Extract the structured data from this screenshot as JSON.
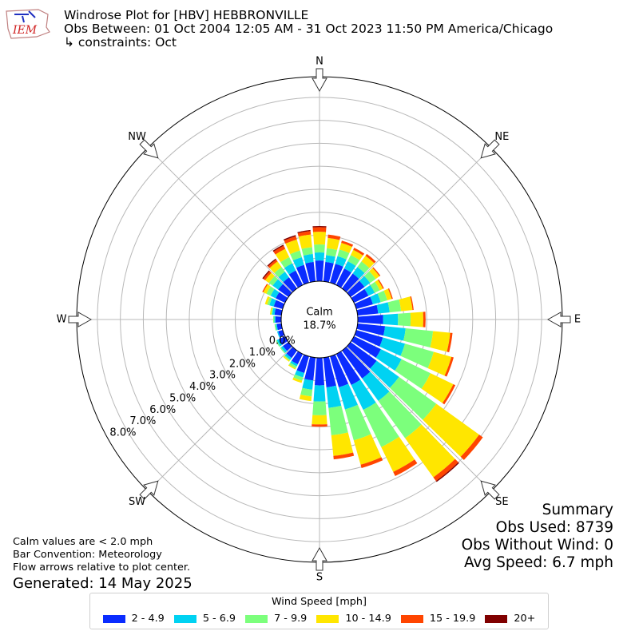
{
  "header": {
    "logo_text": "IEM",
    "title": "Windrose Plot for [HBV] HEBBRONVILLE",
    "obs_between": "Obs Between: 01 Oct 2004 12:05 AM - 31 Oct 2023 11:50 PM America/Chicago",
    "constraints": "↳ constraints: Oct"
  },
  "summary": {
    "title": "Summary",
    "obs_used": "Obs Used: 8739",
    "obs_without_wind": "Obs Without Wind: 0",
    "avg_speed": "Avg Speed: 6.7 mph"
  },
  "notes": {
    "calm_note": "Calm values are < 2.0 mph",
    "bar_convention": "Bar Convention: Meteorology",
    "flow_note": "Flow arrows relative to plot center.",
    "generated": "Generated: 14 May 2025"
  },
  "chart_data": {
    "type": "windrose",
    "calm_label": "Calm",
    "calm_value": "18.7%",
    "directions": [
      "N",
      "NE",
      "E",
      "SE",
      "S",
      "SW",
      "W",
      "NW"
    ],
    "radial_ticks": [
      "0.0%",
      "1.0%",
      "2.0%",
      "3.0%",
      "4.0%",
      "5.0%",
      "6.0%",
      "7.0%",
      "8.0%"
    ],
    "radial_max": 8.9,
    "legend_title": "Wind Speed [mph]",
    "bins": [
      {
        "label": "2 - 4.9",
        "color": "#0a2cff"
      },
      {
        "label": "5 - 6.9",
        "color": "#00d2f2"
      },
      {
        "label": "7 - 9.9",
        "color": "#7cff7c"
      },
      {
        "label": "10 - 14.9",
        "color": "#ffe600"
      },
      {
        "label": "15 - 19.9",
        "color": "#ff4500"
      },
      {
        "label": "20+",
        "color": "#800000"
      }
    ],
    "sectors": [
      {
        "dir": 0,
        "values": [
          0.9,
          0.35,
          0.35,
          0.55,
          0.2,
          0.05
        ]
      },
      {
        "dir": 10,
        "values": [
          0.85,
          0.3,
          0.3,
          0.45,
          0.15,
          0.0
        ]
      },
      {
        "dir": 20,
        "values": [
          0.85,
          0.35,
          0.3,
          0.3,
          0.1,
          0.0
        ]
      },
      {
        "dir": 30,
        "values": [
          0.8,
          0.35,
          0.3,
          0.25,
          0.1,
          0.0
        ]
      },
      {
        "dir": 40,
        "values": [
          0.8,
          0.35,
          0.3,
          0.3,
          0.1,
          0.0
        ]
      },
      {
        "dir": 50,
        "values": [
          0.75,
          0.3,
          0.3,
          0.2,
          0.05,
          0.0
        ]
      },
      {
        "dir": 60,
        "values": [
          0.7,
          0.3,
          0.25,
          0.15,
          0.05,
          0.0
        ]
      },
      {
        "dir": 70,
        "values": [
          0.75,
          0.35,
          0.3,
          0.2,
          0.05,
          0.0
        ]
      },
      {
        "dir": 80,
        "values": [
          0.9,
          0.5,
          0.5,
          0.5,
          0.05,
          0.0
        ]
      },
      {
        "dir": 90,
        "values": [
          1.1,
          0.65,
          0.55,
          0.55,
          0.1,
          0.0
        ]
      },
      {
        "dir": 100,
        "values": [
          1.2,
          0.9,
          1.2,
          0.75,
          0.1,
          0.0
        ]
      },
      {
        "dir": 110,
        "values": [
          1.2,
          1.0,
          1.3,
          0.8,
          0.1,
          0.0
        ]
      },
      {
        "dir": 120,
        "values": [
          1.3,
          1.0,
          1.4,
          1.1,
          0.1,
          0.0
        ]
      },
      {
        "dir": 130,
        "values": [
          1.4,
          1.2,
          2.0,
          2.3,
          0.2,
          0.0
        ]
      },
      {
        "dir": 140,
        "values": [
          1.5,
          1.2,
          2.0,
          2.1,
          0.2,
          0.05
        ]
      },
      {
        "dir": 150,
        "values": [
          1.5,
          1.2,
          1.8,
          1.2,
          0.2,
          0.0
        ]
      },
      {
        "dir": 160,
        "values": [
          1.4,
          1.0,
          1.4,
          1.1,
          0.15,
          0.0
        ]
      },
      {
        "dir": 170,
        "values": [
          1.3,
          0.9,
          1.2,
          0.9,
          0.15,
          0.0
        ]
      },
      {
        "dir": 180,
        "values": [
          1.2,
          0.7,
          0.6,
          0.4,
          0.1,
          0.0
        ]
      },
      {
        "dir": 190,
        "values": [
          1.0,
          0.4,
          0.3,
          0.2,
          0.0,
          0.0
        ]
      },
      {
        "dir": 200,
        "values": [
          0.75,
          0.2,
          0.15,
          0.1,
          0.0,
          0.0
        ]
      },
      {
        "dir": 210,
        "values": [
          0.5,
          0.1,
          0.1,
          0.05,
          0.0,
          0.0
        ]
      },
      {
        "dir": 220,
        "values": [
          0.4,
          0.1,
          0.05,
          0.05,
          0.0,
          0.0
        ]
      },
      {
        "dir": 230,
        "values": [
          0.3,
          0.1,
          0.05,
          0.0,
          0.0,
          0.0
        ]
      },
      {
        "dir": 240,
        "values": [
          0.3,
          0.1,
          0.05,
          0.0,
          0.0,
          0.0
        ]
      },
      {
        "dir": 250,
        "values": [
          0.2,
          0.05,
          0.0,
          0.0,
          0.0,
          0.0
        ]
      },
      {
        "dir": 260,
        "values": [
          0.2,
          0.05,
          0.05,
          0.0,
          0.0,
          0.0
        ]
      },
      {
        "dir": 270,
        "values": [
          0.25,
          0.05,
          0.05,
          0.0,
          0.0,
          0.0
        ]
      },
      {
        "dir": 280,
        "values": [
          0.3,
          0.1,
          0.05,
          0.05,
          0.0,
          0.0
        ]
      },
      {
        "dir": 290,
        "values": [
          0.4,
          0.2,
          0.1,
          0.1,
          0.0,
          0.0
        ]
      },
      {
        "dir": 300,
        "values": [
          0.45,
          0.25,
          0.2,
          0.15,
          0.05,
          0.0
        ]
      },
      {
        "dir": 310,
        "values": [
          0.55,
          0.3,
          0.2,
          0.2,
          0.1,
          0.05
        ]
      },
      {
        "dir": 320,
        "values": [
          0.6,
          0.3,
          0.25,
          0.3,
          0.1,
          0.05
        ]
      },
      {
        "dir": 330,
        "values": [
          0.7,
          0.35,
          0.3,
          0.4,
          0.15,
          0.05
        ]
      },
      {
        "dir": 340,
        "values": [
          0.8,
          0.35,
          0.3,
          0.5,
          0.15,
          0.05
        ]
      },
      {
        "dir": 350,
        "values": [
          0.85,
          0.35,
          0.3,
          0.55,
          0.15,
          0.05
        ]
      }
    ]
  }
}
